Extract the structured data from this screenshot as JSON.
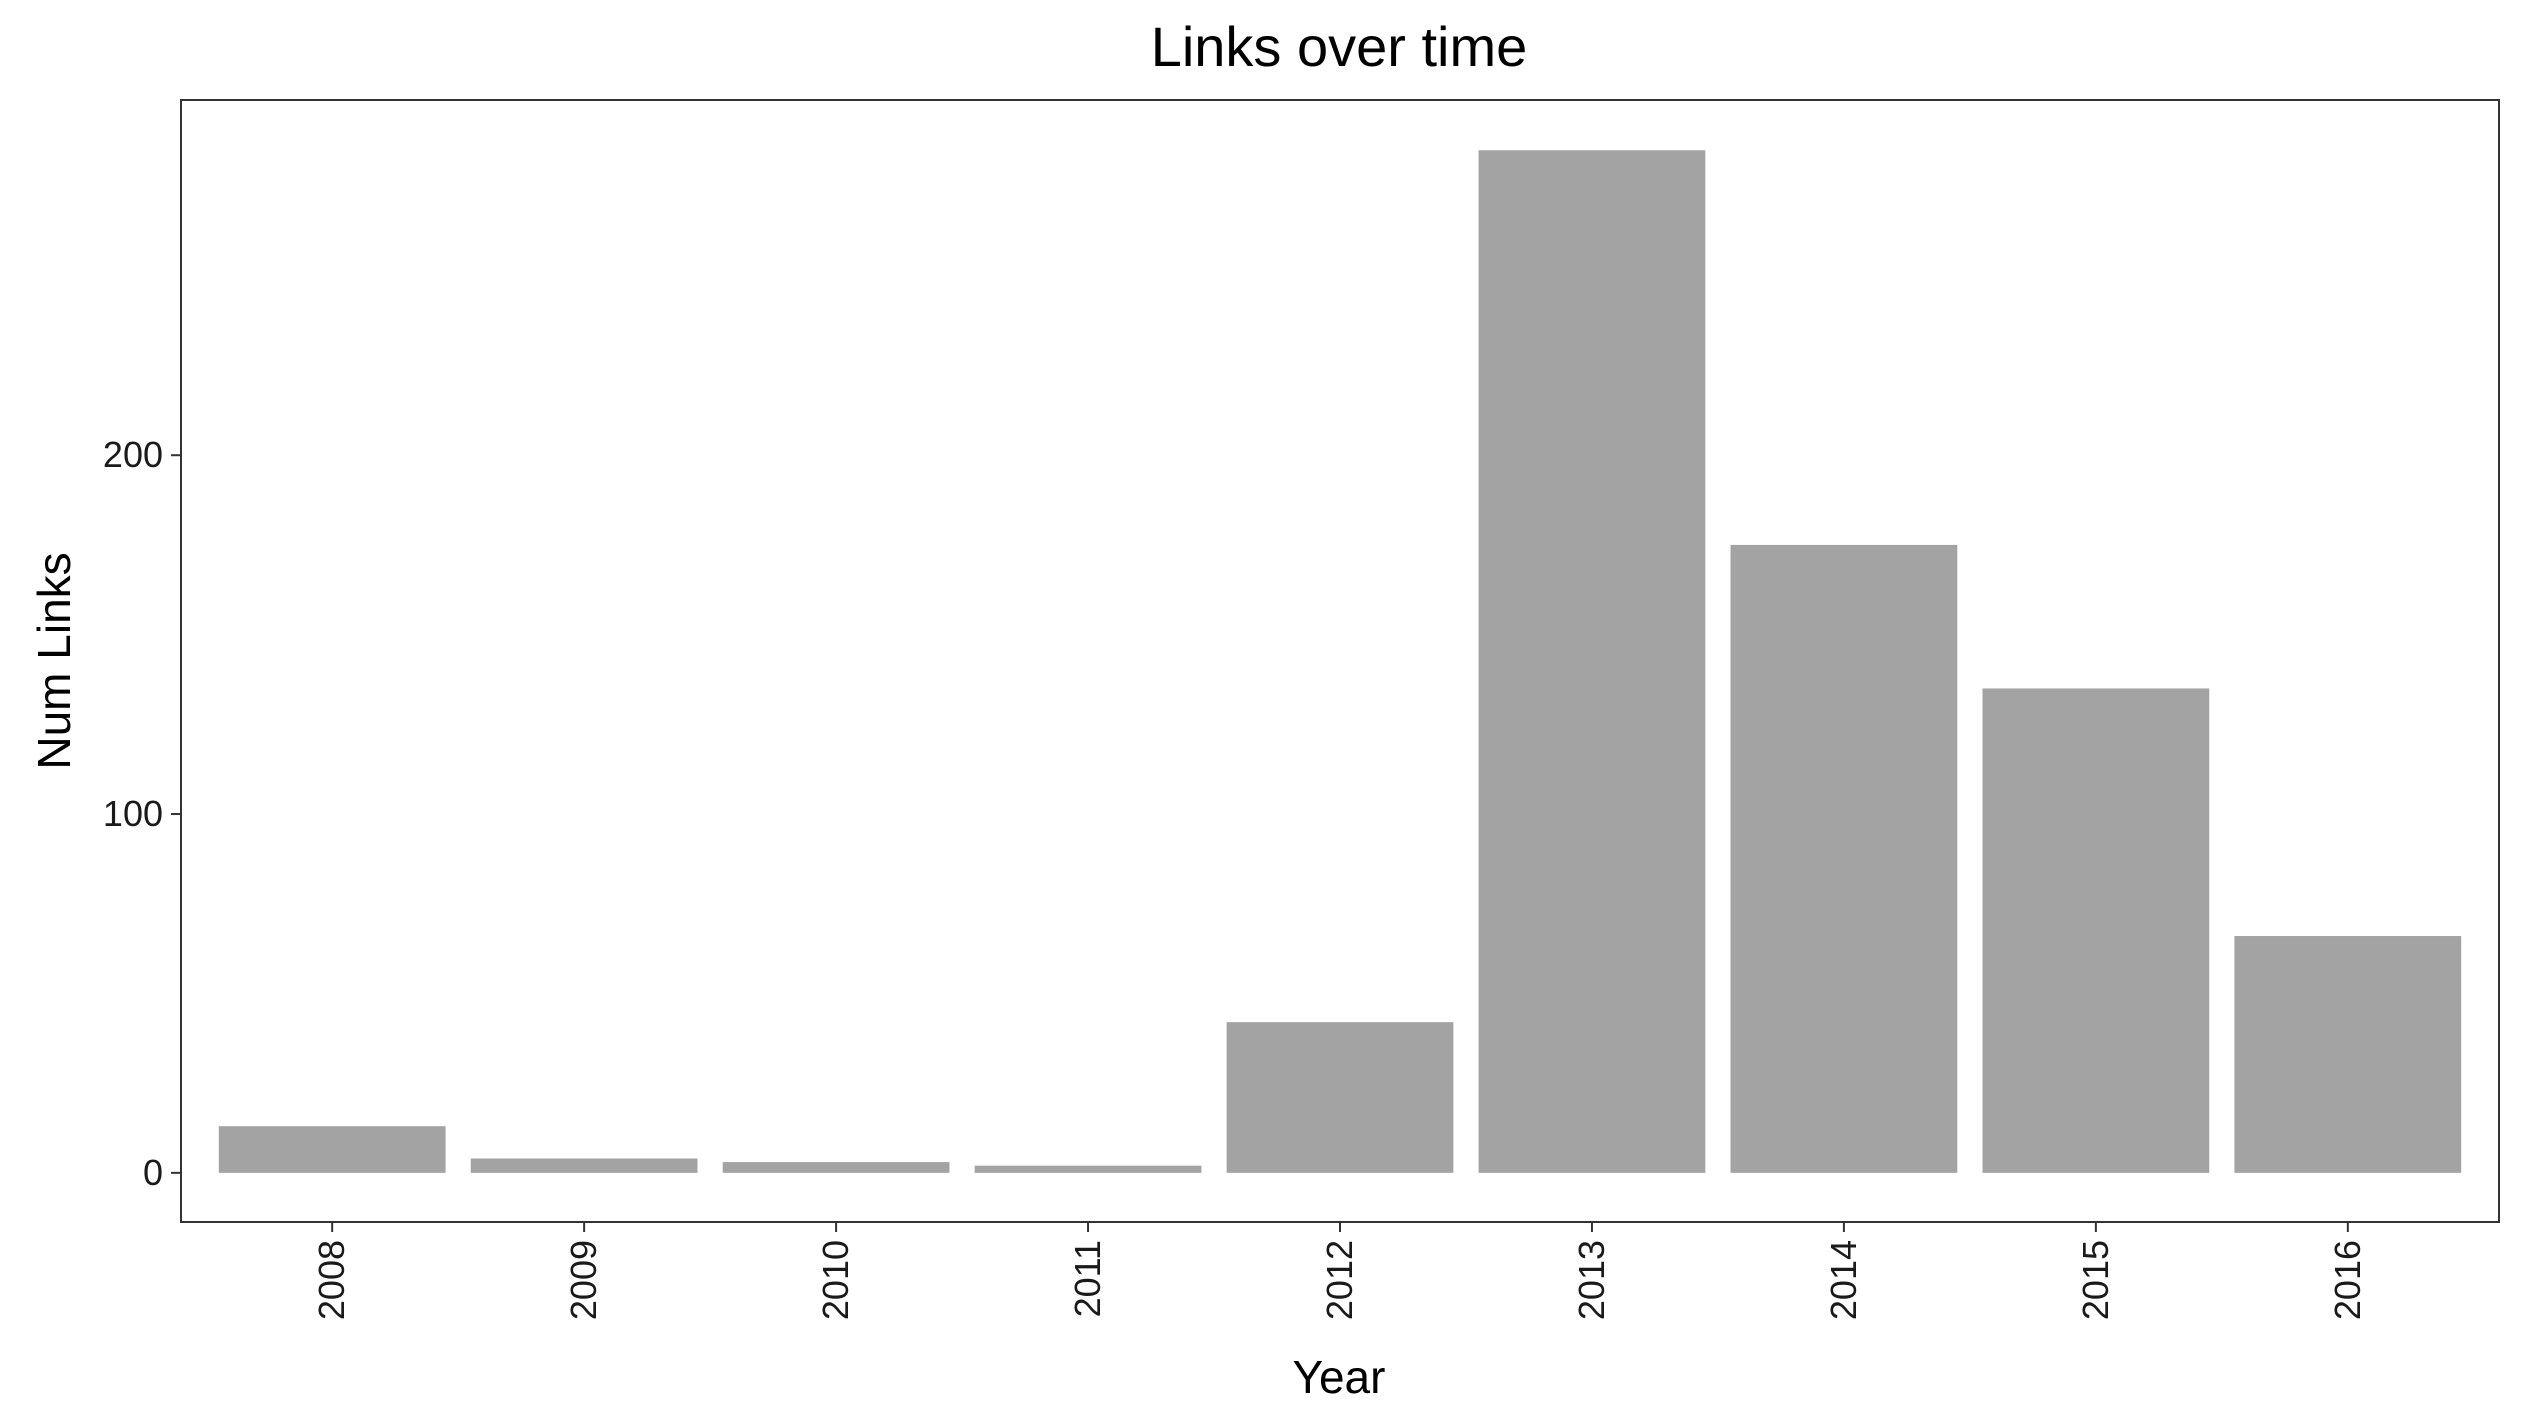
{
  "chart_data": {
    "type": "bar",
    "title": "Links over time",
    "xlabel": "Year",
    "ylabel": "Num Links",
    "categories": [
      "2008",
      "2009",
      "2010",
      "2011",
      "2012",
      "2013",
      "2014",
      "2015",
      "2016"
    ],
    "values": [
      13,
      4,
      3,
      2,
      42,
      285,
      175,
      135,
      66
    ],
    "ylim": [
      -13.7,
      299
    ],
    "yticks": [
      0,
      100,
      200
    ],
    "ytick_labels": [
      "0",
      "100",
      "200"
    ],
    "grid": false,
    "legend": "none",
    "bar_color": "#a3a3a3",
    "panel_border_color": "#333333"
  }
}
